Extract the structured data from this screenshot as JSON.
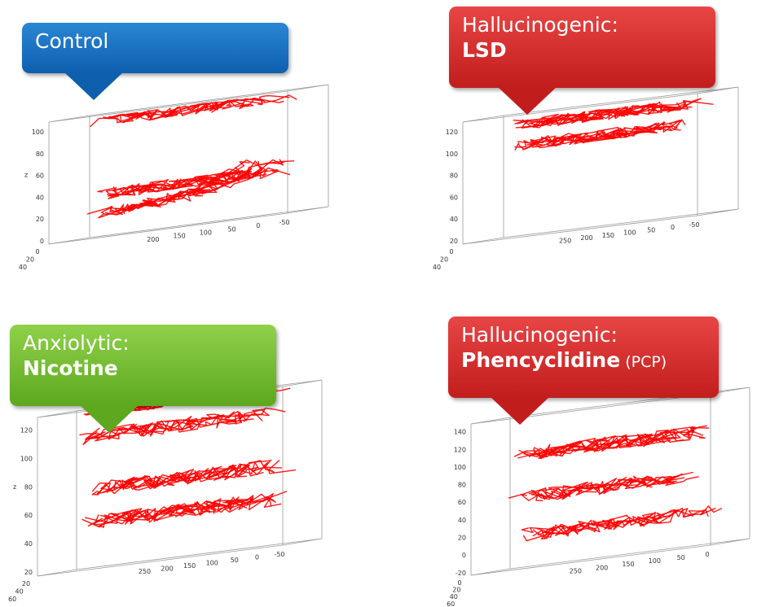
{
  "callouts": [
    {
      "line1": "Control",
      "line2": "",
      "sub": "",
      "color": "#1a73c8"
    },
    {
      "line1": "Hallucinogenic:",
      "line2": "LSD",
      "sub": "",
      "color": "#d42a2a"
    },
    {
      "line1": "Anxiolytic:",
      "line2": "Nicotine",
      "sub": "",
      "color": "#77bf2f"
    },
    {
      "line1": "Hallucinogenic:",
      "line2": "Phencyclidine",
      "sub": " (PCP)",
      "color": "#d42a2a"
    }
  ],
  "trace_color": "#ff0000",
  "chart_data": [
    {
      "type": "line",
      "title": "Control",
      "zlabel": "z",
      "z_ticks": [
        "0",
        "20",
        "40",
        "60",
        "80",
        "100"
      ],
      "x_ticks": [
        "200",
        "150",
        "100",
        "50",
        "0",
        "-50"
      ],
      "y_ticks": [
        "0",
        "20",
        "40"
      ],
      "ylim": [
        0,
        100
      ],
      "trajectory_z_levels": [
        20,
        35,
        95
      ],
      "pattern": "swimming concentrated near bottom with excursions rising toward top at one end"
    },
    {
      "type": "line",
      "title": "Hallucinogenic: LSD",
      "zlabel": "",
      "z_ticks": [
        "20",
        "40",
        "60",
        "80",
        "100",
        "120"
      ],
      "x_ticks": [
        "250",
        "200",
        "150",
        "100",
        "50",
        "0",
        "-50"
      ],
      "y_ticks": [
        "0",
        "20",
        "40"
      ],
      "ylim": [
        0,
        120
      ],
      "trajectory_z_levels": [
        90,
        110
      ],
      "pattern": "swimming concentrated near top with a single descending path"
    },
    {
      "type": "line",
      "title": "Anxiolytic: Nicotine",
      "zlabel": "z",
      "z_ticks": [
        "20",
        "40",
        "60",
        "80",
        "100",
        "120"
      ],
      "x_ticks": [
        "250",
        "200",
        "150",
        "100",
        "50",
        "0",
        "-50"
      ],
      "y_ticks": [
        "20",
        "40",
        "60"
      ],
      "ylim": [
        0,
        120
      ],
      "trajectory_z_levels": [
        35,
        60,
        100,
        120
      ],
      "pattern": "dense band near top plus looping paths through lower half"
    },
    {
      "type": "line",
      "title": "Hallucinogenic: Phencyclidine (PCP)",
      "zlabel": "",
      "z_ticks": [
        "-20",
        "0",
        "20",
        "40",
        "60",
        "80",
        "100",
        "120",
        "140"
      ],
      "x_ticks": [
        "250",
        "200",
        "150",
        "100",
        "50",
        "0"
      ],
      "y_ticks": [
        "0",
        "20",
        "40",
        "60"
      ],
      "ylim": [
        -20,
        140
      ],
      "trajectory_z_levels": [
        15,
        55,
        100
      ],
      "pattern": "separate horizontal bands at three depth levels"
    }
  ]
}
